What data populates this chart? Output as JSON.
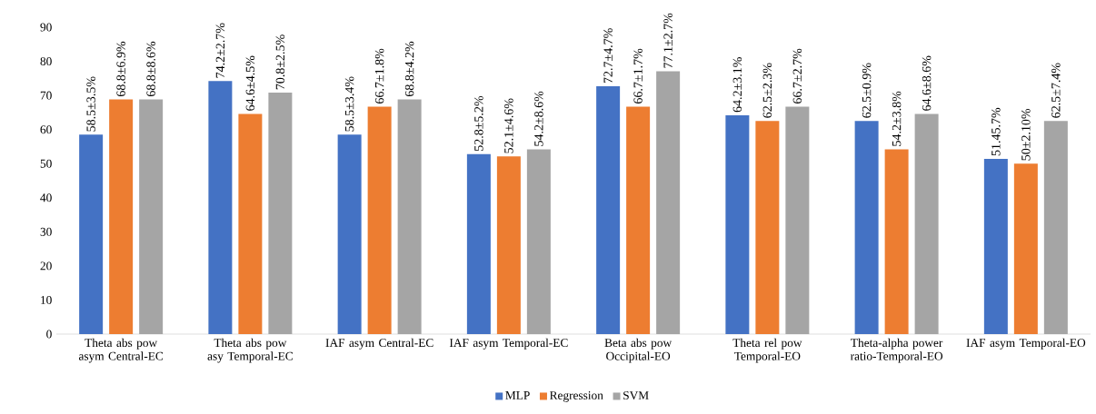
{
  "chart_data": {
    "type": "bar",
    "categories": [
      "Theta abs pow asym Central-EC",
      "Theta abs pow asy Temporal-EC",
      "IAF asym Central-EC",
      "IAF asym Temporal-EC",
      "Beta abs pow Occipital-EO",
      "Theta rel pow Temporal-EO",
      "Theta-alpha power ratio-Temporal-EO",
      "IAF asym Temporal-EO"
    ],
    "series": [
      {
        "name": "MLP",
        "color": "#4472c4",
        "values": [
          58.5,
          74.2,
          58.5,
          52.8,
          72.7,
          64.2,
          62.5,
          51.4
        ],
        "value_labels": [
          "58.5±3.5%",
          "74.2±2.7%",
          "58.5±3.4%",
          "52.8±5.2%",
          "72.7±4.7%",
          "64.2±3.1%",
          "62.5±0.9%",
          "51.45.7%"
        ]
      },
      {
        "name": "Regression",
        "color": "#ed7d31",
        "values": [
          68.8,
          64.6,
          66.7,
          52.1,
          66.7,
          62.5,
          54.2,
          50
        ],
        "value_labels": [
          "68.8±6.9%",
          "64.6±4.5%",
          "66.7±1.8%",
          "52.1±4.6%",
          "66.7±1.7%",
          "62.5±2.3%",
          "54.2±3.8%",
          "50±2.10%"
        ]
      },
      {
        "name": "SVM",
        "color": "#a5a5a5",
        "values": [
          68.8,
          70.8,
          68.8,
          54.2,
          77.1,
          66.7,
          64.6,
          62.5
        ],
        "value_labels": [
          "68.8±8.6%",
          "70.8±2.5%",
          "68.8±4.2%",
          "54.2±8.6%",
          "77.1±2.7%",
          "66.7±2.7%",
          "64.6±8.6%",
          "62.5±7.4%"
        ]
      }
    ],
    "ylim": [
      0,
      90
    ],
    "yticks": [
      0,
      10,
      20,
      30,
      40,
      50,
      60,
      70,
      80,
      90
    ],
    "legend": "bottom"
  }
}
